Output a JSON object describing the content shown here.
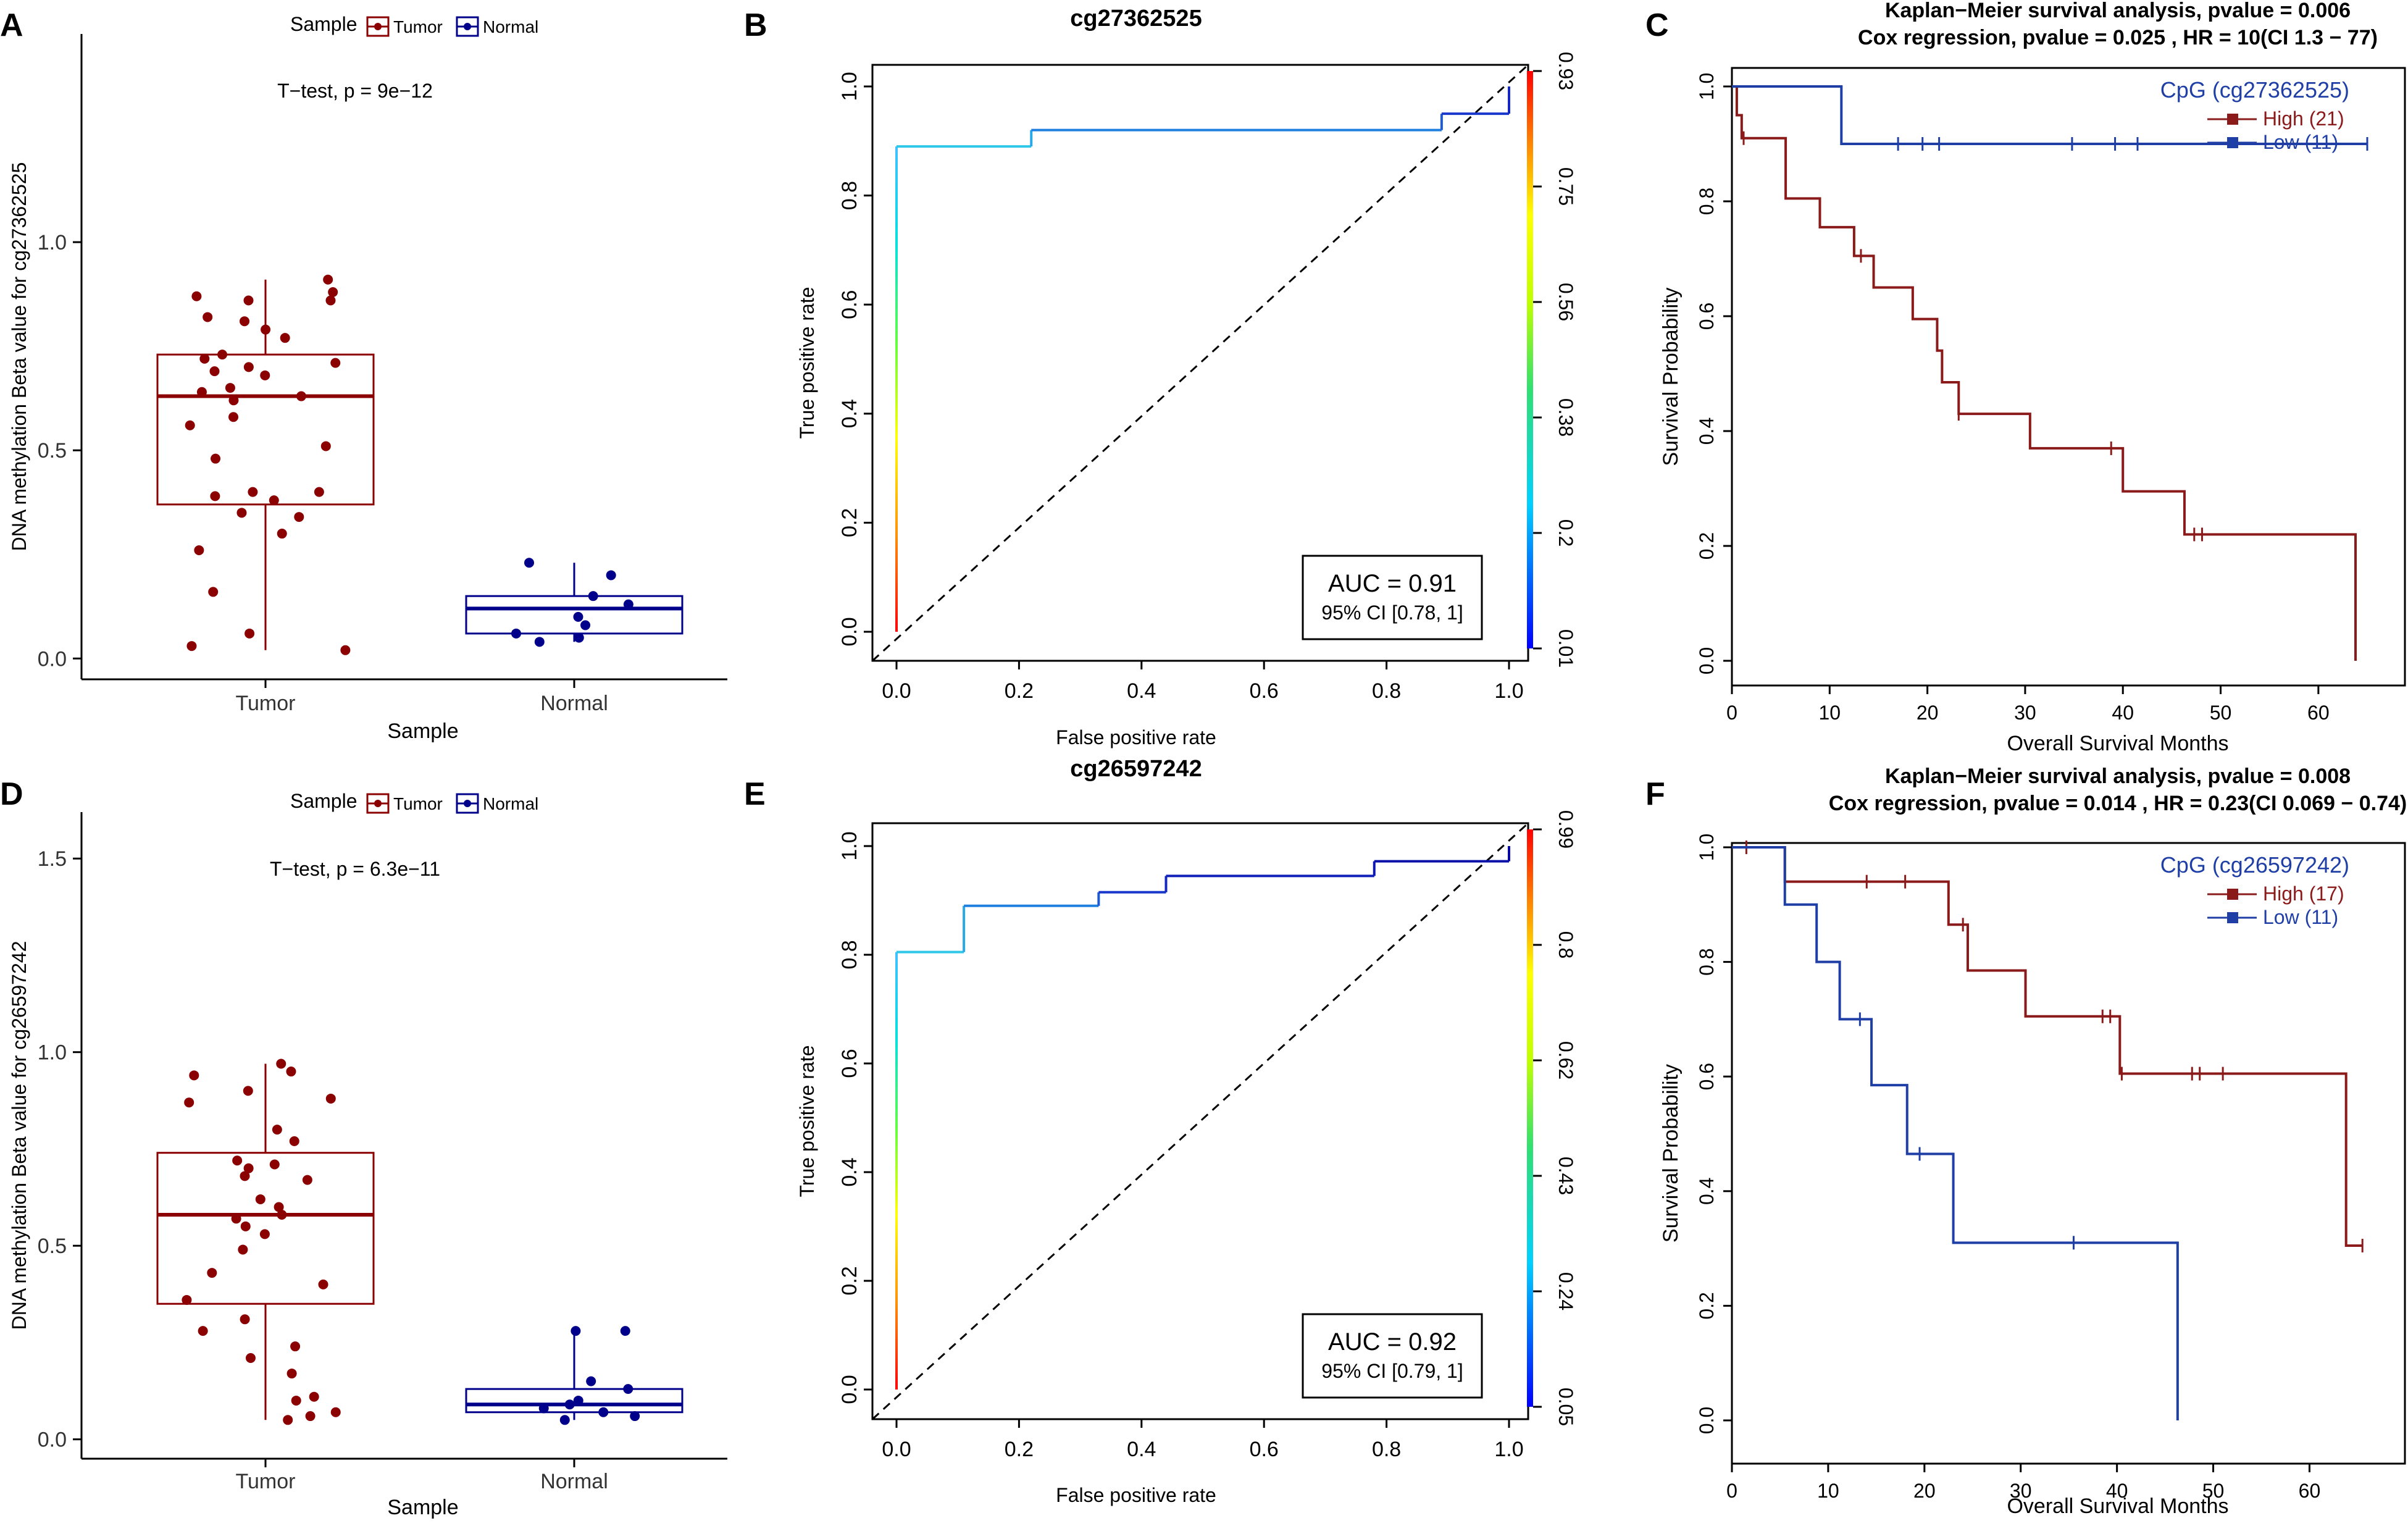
{
  "colors": {
    "tumor": "#8b0000",
    "normal": "#00008b",
    "high": "#8b1a1a",
    "low": "#1f3fa6",
    "axis": "#000000",
    "grid_dash": "#000000"
  },
  "panel_labels": {
    "A": "A",
    "B": "B",
    "C": "C",
    "D": "D",
    "E": "E",
    "F": "F"
  },
  "chart_data": [
    {
      "panel": "A",
      "type": "box",
      "legend_title": "Sample",
      "legend_items": [
        "Tumor",
        "Normal"
      ],
      "annotation": "T−test, p = 9e−12",
      "xlabel": "Sample",
      "ylabel": "DNA methylation Beta value for cg27362525",
      "categories": [
        "Tumor",
        "Normal"
      ],
      "ylim": [
        -0.05,
        1.5
      ],
      "yticks": [
        0.0,
        0.5,
        1.0
      ],
      "ytick_labels": [
        "0.0",
        "0.5",
        "1.0"
      ],
      "boxes": [
        {
          "name": "Tumor",
          "q1": 0.37,
          "median": 0.63,
          "q3": 0.73,
          "whisker_low": 0.02,
          "whisker_high": 0.91,
          "points": [
            0.91,
            0.88,
            0.87,
            0.86,
            0.86,
            0.82,
            0.81,
            0.79,
            0.77,
            0.73,
            0.72,
            0.71,
            0.7,
            0.69,
            0.68,
            0.65,
            0.64,
            0.63,
            0.62,
            0.58,
            0.56,
            0.51,
            0.48,
            0.4,
            0.4,
            0.39,
            0.38,
            0.35,
            0.34,
            0.3,
            0.26,
            0.16,
            0.06,
            0.03,
            0.02
          ]
        },
        {
          "name": "Normal",
          "q1": 0.06,
          "median": 0.12,
          "q3": 0.15,
          "whisker_low": 0.04,
          "whisker_high": 0.23,
          "points": [
            0.23,
            0.2,
            0.15,
            0.13,
            0.1,
            0.08,
            0.06,
            0.05,
            0.04
          ]
        }
      ]
    },
    {
      "panel": "B",
      "type": "roc",
      "title": "cg27362525",
      "xlabel": "False positive rate",
      "ylabel": "True positive rate",
      "xlim": [
        0,
        1
      ],
      "ylim": [
        0,
        1
      ],
      "xticks": [
        "0.0",
        "0.2",
        "0.4",
        "0.6",
        "0.8",
        "1.0"
      ],
      "yticks": [
        "0.0",
        "0.2",
        "0.4",
        "0.6",
        "0.8",
        "1.0"
      ],
      "colorbar_ticks": [
        "0.01",
        "0.2",
        "0.38",
        "0.56",
        "0.75",
        "0.93"
      ],
      "roc_points": [
        [
          0,
          0
        ],
        [
          0,
          0.89
        ],
        [
          0.22,
          0.89
        ],
        [
          0.22,
          0.92
        ],
        [
          0.89,
          0.92
        ],
        [
          0.89,
          0.95
        ],
        [
          1,
          0.95
        ],
        [
          1,
          1
        ]
      ],
      "auc_label": "AUC = 0.91",
      "ci_label": "95% CI [0.78, 1]"
    },
    {
      "panel": "C",
      "type": "km",
      "title_line1": "Kaplan−Meier survival analysis, pvalue =  0.006",
      "title_line2": "Cox regression,  pvalue = 0.025 , HR = 10(CI 1.3 − 77)",
      "xlabel": "Overall Survival Months",
      "ylabel": "Survival Probability",
      "xlim": [
        0,
        65
      ],
      "ylim": [
        0,
        1
      ],
      "xticks": [
        "0",
        "10",
        "20",
        "30",
        "40",
        "50",
        "60"
      ],
      "yticks": [
        "0.0",
        "0.2",
        "0.4",
        "0.6",
        "0.8",
        "1.0"
      ],
      "legend_title": "CpG (cg27362525)",
      "series": [
        {
          "name": "High (21)",
          "color_key": "high",
          "steps": [
            [
              0,
              1.0
            ],
            [
              0.5,
              0.95
            ],
            [
              1,
              0.91
            ],
            [
              5.5,
              0.805
            ],
            [
              9,
              0.755
            ],
            [
              12.5,
              0.705
            ],
            [
              14.5,
              0.65
            ],
            [
              18.5,
              0.595
            ],
            [
              21,
              0.54
            ],
            [
              21.5,
              0.485
            ],
            [
              23.2,
              0.43
            ],
            [
              30.5,
              0.37
            ],
            [
              40,
              0.295
            ],
            [
              46.3,
              0.22
            ],
            [
              63.8,
              0.0
            ]
          ],
          "end": 63.8,
          "censors": [
            [
              1.2,
              0.91
            ],
            [
              13.2,
              0.705
            ],
            [
              23.2,
              0.43
            ],
            [
              38.8,
              0.37
            ],
            [
              47.3,
              0.22
            ],
            [
              48.1,
              0.22
            ]
          ]
        },
        {
          "name": "Low (11)",
          "color_key": "low",
          "steps": [
            [
              0,
              1.0
            ],
            [
              11.2,
              0.9
            ]
          ],
          "end": 65,
          "censors": [
            [
              17,
              0.9
            ],
            [
              19.5,
              0.9
            ],
            [
              21.2,
              0.9
            ],
            [
              34.8,
              0.9
            ],
            [
              39.2,
              0.9
            ],
            [
              41.5,
              0.9
            ],
            [
              65,
              0.9
            ]
          ]
        }
      ]
    },
    {
      "panel": "D",
      "type": "box",
      "legend_title": "Sample",
      "legend_items": [
        "Tumor",
        "Normal"
      ],
      "annotation": "T−test, p = 6.3e−11",
      "xlabel": "Sample",
      "ylabel": "DNA methylation Beta value for cg26597242",
      "categories": [
        "Tumor",
        "Normal"
      ],
      "ylim": [
        -0.05,
        1.62
      ],
      "yticks": [
        0.0,
        0.5,
        1.0,
        1.5
      ],
      "ytick_labels": [
        "0.0",
        "0.5",
        "1.0",
        "1.5"
      ],
      "boxes": [
        {
          "name": "Tumor",
          "q1": 0.35,
          "median": 0.58,
          "q3": 0.74,
          "whisker_low": 0.05,
          "whisker_high": 0.97,
          "points": [
            0.97,
            0.95,
            0.94,
            0.9,
            0.88,
            0.87,
            0.8,
            0.77,
            0.72,
            0.71,
            0.7,
            0.68,
            0.67,
            0.62,
            0.6,
            0.58,
            0.57,
            0.55,
            0.53,
            0.49,
            0.43,
            0.4,
            0.36,
            0.31,
            0.28,
            0.24,
            0.21,
            0.17,
            0.11,
            0.1,
            0.07,
            0.06,
            0.05
          ]
        },
        {
          "name": "Normal",
          "q1": 0.07,
          "median": 0.09,
          "q3": 0.13,
          "whisker_low": 0.05,
          "whisker_high": 0.28,
          "points": [
            0.28,
            0.28,
            0.15,
            0.13,
            0.1,
            0.09,
            0.08,
            0.07,
            0.06,
            0.05
          ]
        }
      ]
    },
    {
      "panel": "E",
      "type": "roc",
      "title": "cg26597242",
      "xlabel": "False positive rate",
      "ylabel": "True positive rate",
      "xlim": [
        0,
        1
      ],
      "ylim": [
        0,
        1
      ],
      "xticks": [
        "0.0",
        "0.2",
        "0.4",
        "0.6",
        "0.8",
        "1.0"
      ],
      "yticks": [
        "0.0",
        "0.2",
        "0.4",
        "0.6",
        "0.8",
        "1.0"
      ],
      "colorbar_ticks": [
        "0.05",
        "0.24",
        "0.43",
        "0.62",
        "0.8",
        "0.99"
      ],
      "roc_points": [
        [
          0,
          0
        ],
        [
          0,
          0.805
        ],
        [
          0.11,
          0.805
        ],
        [
          0.11,
          0.89
        ],
        [
          0.33,
          0.89
        ],
        [
          0.33,
          0.915
        ],
        [
          0.44,
          0.915
        ],
        [
          0.44,
          0.945
        ],
        [
          0.78,
          0.945
        ],
        [
          0.78,
          0.972
        ],
        [
          1,
          0.972
        ],
        [
          1,
          1
        ]
      ],
      "auc_label": "AUC = 0.92",
      "ci_label": "95% CI [0.79, 1]"
    },
    {
      "panel": "F",
      "type": "km",
      "title_line1": "Kaplan−Meier survival analysis, pvalue =  0.008",
      "title_line2": "Cox regression,  pvalue = 0.014 , HR = 0.23(CI 0.069 − 0.74)",
      "xlabel": "Overall Survival Months",
      "ylabel": "Survival Probability",
      "xlim": [
        0,
        66
      ],
      "ylim": [
        0,
        1
      ],
      "xticks": [
        "0",
        "10",
        "20",
        "30",
        "40",
        "50",
        "60"
      ],
      "yticks": [
        "0.0",
        "0.2",
        "0.4",
        "0.6",
        "0.8",
        "1.0"
      ],
      "legend_title": "CpG (cg26597242)",
      "series": [
        {
          "name": "High (17)",
          "color_key": "high",
          "steps": [
            [
              0,
              1.0
            ],
            [
              5.5,
              0.94
            ],
            [
              22.5,
              0.865
            ],
            [
              24.5,
              0.785
            ],
            [
              30.5,
              0.705
            ],
            [
              40.3,
              0.605
            ],
            [
              63.8,
              0.305
            ]
          ],
          "end": 65.5,
          "censors": [
            [
              1.5,
              1.0
            ],
            [
              14,
              0.94
            ],
            [
              18,
              0.94
            ],
            [
              24,
              0.865
            ],
            [
              38.5,
              0.705
            ],
            [
              39.3,
              0.705
            ],
            [
              40.5,
              0.605
            ],
            [
              47.8,
              0.605
            ],
            [
              48.6,
              0.605
            ],
            [
              51,
              0.605
            ],
            [
              65.5,
              0.305
            ]
          ]
        },
        {
          "name": "Low (11)",
          "color_key": "low",
          "steps": [
            [
              0,
              1.0
            ],
            [
              5.5,
              0.9
            ],
            [
              8.8,
              0.8
            ],
            [
              11.2,
              0.7
            ],
            [
              14.5,
              0.585
            ],
            [
              18.2,
              0.465
            ],
            [
              23,
              0.31
            ],
            [
              46.3,
              0.0
            ]
          ],
          "end": 46.3,
          "censors": [
            [
              13.3,
              0.7
            ],
            [
              19.5,
              0.465
            ],
            [
              35.5,
              0.31
            ]
          ]
        }
      ]
    }
  ]
}
